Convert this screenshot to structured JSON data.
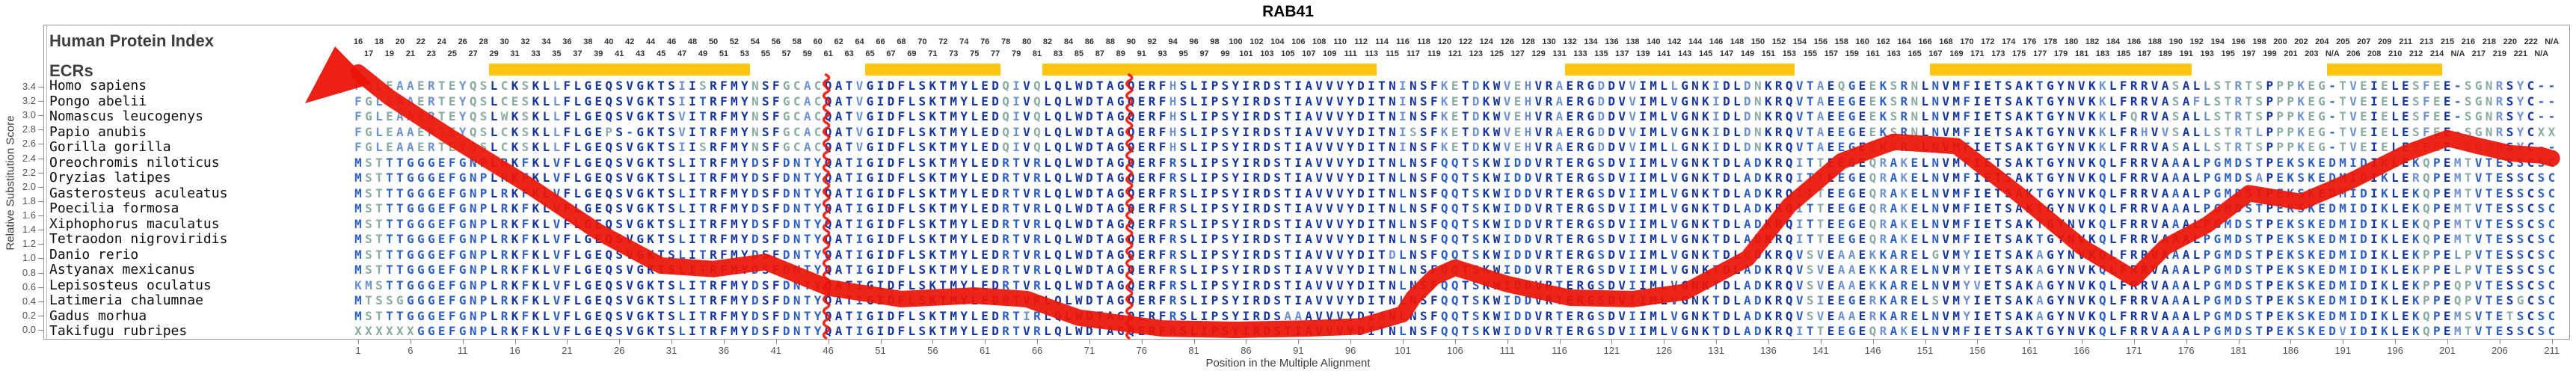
{
  "title": "RAB41",
  "left_panel": {
    "header_label": "Human Protein Index",
    "ecrs_label": "ECRs"
  },
  "y_axis": {
    "label": "Relative Substitution Score",
    "ticks": [
      "0.0",
      "0.2",
      "0.4",
      "0.6",
      "0.8",
      "1.0",
      "1.2",
      "1.4",
      "1.6",
      "1.8",
      "2.0",
      "2.2",
      "2.4",
      "2.6",
      "2.8",
      "3.0",
      "3.2",
      "3.4"
    ]
  },
  "x_axis": {
    "label": "Position in the Multiple Alignment",
    "ticks": [
      1,
      6,
      11,
      16,
      21,
      26,
      31,
      36,
      41,
      46,
      51,
      56,
      61,
      66,
      71,
      76,
      81,
      86,
      91,
      96,
      101,
      106,
      111,
      116,
      121,
      126,
      131,
      136,
      141,
      146,
      151,
      156,
      161,
      166,
      171,
      176,
      181,
      186,
      191,
      196,
      201,
      206,
      211
    ]
  },
  "colors": {
    "curve_red": "#EC1408",
    "ecr_gold": "#FFC40C",
    "letter_navy": "#15369E",
    "letter_blue": "#2D5FC3",
    "letter_steel": "#6E92D0",
    "letter_sage": "#8AAB9F",
    "axis_gray": "#9A9A9A"
  },
  "chart_data": {
    "type": "line",
    "title": "RAB41",
    "xlabel": "Position in the Multiple Alignment",
    "ylabel": "Relative Substitution Score",
    "xlim": [
      1,
      211
    ],
    "ylim": [
      0.0,
      3.4
    ],
    "grid": false,
    "curve": {
      "name": "relative-substitution-score",
      "color": "#EC1408",
      "starts_with_arrowhead": true,
      "points": [
        [
          1,
          3.6
        ],
        [
          4,
          3.25
        ],
        [
          10,
          2.68
        ],
        [
          17,
          2.05
        ],
        [
          24,
          1.37
        ],
        [
          30,
          0.9
        ],
        [
          35,
          0.85
        ],
        [
          40,
          0.95
        ],
        [
          46,
          0.59
        ],
        [
          53,
          0.43
        ],
        [
          60,
          0.48
        ],
        [
          65,
          0.43
        ],
        [
          70,
          0.17
        ],
        [
          78,
          0.02
        ],
        [
          85,
          0.0
        ],
        [
          92,
          0.02
        ],
        [
          97,
          0.05
        ],
        [
          101,
          0.22
        ],
        [
          102,
          0.45
        ],
        [
          104,
          0.74
        ],
        [
          106,
          0.87
        ],
        [
          111,
          0.64
        ],
        [
          117,
          0.45
        ],
        [
          123,
          0.43
        ],
        [
          128,
          0.53
        ],
        [
          134,
          1.0
        ],
        [
          138,
          1.74
        ],
        [
          143,
          2.36
        ],
        [
          148,
          2.63
        ],
        [
          154,
          2.57
        ],
        [
          160,
          1.89
        ],
        [
          166,
          1.16
        ],
        [
          171,
          0.72
        ],
        [
          174,
          1.16
        ],
        [
          178,
          1.47
        ],
        [
          182,
          1.91
        ],
        [
          187,
          1.79
        ],
        [
          192,
          2.1
        ],
        [
          197,
          2.47
        ],
        [
          201,
          2.68
        ],
        [
          204,
          2.57
        ],
        [
          207,
          2.47
        ],
        [
          210,
          2.44
        ],
        [
          211,
          2.4
        ]
      ]
    },
    "red_column_markers": [
      46,
      75
    ],
    "ecr_bars_columns": [
      [
        14,
        38
      ],
      [
        50,
        62
      ],
      [
        67,
        98
      ],
      [
        117,
        138
      ],
      [
        152,
        176
      ],
      [
        190,
        200
      ]
    ],
    "human_protein_index": [
      16,
      17,
      18,
      19,
      20,
      21,
      22,
      23,
      24,
      25,
      26,
      27,
      28,
      29,
      30,
      31,
      32,
      33,
      34,
      35,
      36,
      37,
      38,
      39,
      40,
      41,
      42,
      43,
      44,
      45,
      46,
      47,
      48,
      49,
      50,
      51,
      52,
      53,
      54,
      55,
      56,
      57,
      58,
      59,
      60,
      61,
      62,
      63,
      64,
      65,
      66,
      67,
      68,
      69,
      70,
      71,
      72,
      73,
      74,
      75,
      76,
      77,
      78,
      79,
      80,
      81,
      82,
      83,
      84,
      85,
      86,
      87,
      88,
      89,
      90,
      91,
      92,
      93,
      94,
      95,
      96,
      97,
      98,
      99,
      100,
      101,
      102,
      103,
      104,
      105,
      106,
      107,
      108,
      109,
      110,
      111,
      112,
      113,
      114,
      115,
      116,
      117,
      118,
      119,
      120,
      121,
      122,
      123,
      124,
      125,
      126,
      127,
      128,
      129,
      130,
      131,
      132,
      133,
      134,
      135,
      136,
      137,
      138,
      139,
      140,
      141,
      142,
      143,
      144,
      145,
      146,
      147,
      148,
      149,
      150,
      151,
      152,
      153,
      154,
      155,
      156,
      157,
      158,
      159,
      160,
      161,
      162,
      163,
      164,
      165,
      166,
      167,
      168,
      169,
      170,
      171,
      172,
      173,
      174,
      175,
      176,
      177,
      178,
      179,
      180,
      181,
      182,
      183,
      184,
      185,
      186,
      187,
      188,
      189,
      190,
      191,
      192,
      193,
      194,
      195,
      196,
      197,
      198,
      199,
      200,
      201,
      202,
      203,
      204,
      "N/A",
      205,
      206,
      207,
      208,
      209,
      210,
      211,
      212,
      213,
      214,
      215,
      "N/A",
      216,
      217,
      218,
      219,
      220,
      221,
      222,
      "N/A",
      "N/A"
    ],
    "alignment": {
      "columns": 211,
      "species": [
        {
          "name": "Homo sapiens",
          "sequence": "FGLEAAERTEYQSLCKSKLLFLGEQSVGKTSIISRFMYNSFGCACQATVGIDFLSKTMYLEDQIVQLQLWDTAGQERFHSLIPSYIRDSTIAVVVYDITNINSFKETDKWVEHVRAERGDDVVIMLLGNKIDLDNKRQVTAEQGEEKSRNLNVMFIETSAKTGYNVKKLFRRVASALLSTRTSPPPKEG-TVEIELESFEE-SGNRSYC--"
        },
        {
          "name": "Pongo abelii",
          "sequence": "FGLEAAERTEYQSLCESKLLFLGEQSVGKTSIITRFMYNSFGCACQATVGIDFLSKTMYLEDQIVQLQLWDTAGQERFHSLIPSYIRDSTIAVVVYDITNINSFKETDKWVEHVRAERGDDVVIMLVGNKIDLDNKRQVTAEEGEEKSRNLNVMFIETSAKTGYNVKKLFRRVASAFLSTRTSPPPKEG-TVEIELESFEE-SGNRSYC--"
        },
        {
          "name": "Nomascus leucogenys",
          "sequence": "FGLEAAERTEYQSLWKSKLLFLGEQSVGKTSVITRFMYNSFGCACQATVGIDFLSKTMYLEDQIVQLQLWDTAGQERFHSLIPSYIRDSTIAVVVYDITNINSFKETDKWVEHVRAERGDDVVIMLVGNKIDLDNKRQVTAEEGEEKSRNLNVMFIETSAKTGYNVKKLFQRVASALLSTRTSPPPKEG-TVEIELESFEE-SGNRSYC--"
        },
        {
          "name": "Papio anubis",
          "sequence": "FGLEAAERTEYQSLCKSKLLFLGEPS-GKTSVITRFMYNSFGCACQATVGIDFLSKTMYLEDQIVQLQLWDTAGQERFHSLIPSYIRDSTIAVVVYDITNISSFKETDKWVEHVRAERGDDVVIMLVGNKIDLDNKRQVTAEEGEEKSRNLNVMFIETSAKTGYNVKKLFRHVVSALLSTRTLPPPKEG-TVEIELESFEE-SGNRSYCXX"
        },
        {
          "name": "Gorilla gorilla",
          "sequence": "FGLEAAERTEYQSLCKSKLLFLGEQSVGKTSIISRFMYNSFGCACQATVGIDFLSKTMYLEDQIVQLQLWDTAGQERFHSLIPSYIRDSTIAVVVYDITNINSFKETDKWVEHVRAERGDDVVIMLLGNKIDLDNKRQVTAEEGEEKSRNLNVMFIETSAKTGYNVKKLFRRVASALLSTRTSPPPKEG-TVEIELESFEE-SGNRSYC--"
        },
        {
          "name": "Oreochromis niloticus",
          "sequence": "MSTTTGGGEFGNPLRKFKLVFLGEQSVGKTSLITRFMYDSFDNTYQATIGIDFLSKTMYLEDRTVRLQLWDTAGQERFRSLIPSYIRDSTIAVVVYDITNLNSFQQTSKWIDDVRTERGSDVIIMLVGNKTDLADKRQITTEEGEQRAKELNVMFIETSAKTGYNVKQLFRRVAAALPGMDSTPEKSKEDMIDIKLEKQPEMTVTESSCSC"
        },
        {
          "name": "Oryzias latipes",
          "sequence": "MSTTTGGGEFGNPLRKFKLVFLGEQSVGKTSLITRFMYDSFDNTYQATIGIDFLSKTMYLEDRTVRLQLWDTAGQERFRSLIPSYIRDSTIAVVVYDITNLNSFQQTSKWIDDVRTERGSDVIIMLVGNKTDLADKRQITTEEGEQRAKELNVMFIETSAKTGYNVKQLFRRVAAALPGMDSAPEKSKEDMIDIKLERQPEMTVTESSCSC"
        },
        {
          "name": "Gasterosteus aculeatus",
          "sequence": "MSTTTGGGEFGNPLRKFKLVFLGEQSVGKTSLITRFMYDSFDNTYQATIGIDFLSKTMYLEDRTVRLQLWDTAGQERFRSLIPSYIRDSTIAVVVYDITNLNSFQQTSKWIDDVRTERGSDVIIMLVGNKTDLADKRQITTEEGEQRAKELNVMFIETSAKTGYNVKQLFRRVAAALPGMDSTPEKSKEDMIDIKLEKQPEMTVTESSCSC"
        },
        {
          "name": "Poecilia formosa",
          "sequence": "MSTTTGGGEFGNPLRKFKLVFLGEQSVGKTSLITRFMYDSFDNTYQATIGIDFLSKTMYLEDRTVRLQLWDTAGQERFRSLIPSYIRDSTIAVVVYDITNLNSFQQTSKWIDDVRTERGSDVIIMLVGNKTDLADKRQITTEEGEQRAKELNVMFIETSAKTGYNVKQLFRRVAAALPGMDSTPEKSKEDMIDIKLEKQPEMTVTESSCSC"
        },
        {
          "name": "Xiphophorus maculatus",
          "sequence": "MSTTTGGGEFGNPLRKFKLVFLGEQSVGKTSLITRFMYDSFDNTYQATIGIDFLSKTMYLEDRTVRLQLWDTAGQERFRSLIPSYIRDSTIAVVVYDITNLNSFQQTSKWIDDVRTERGSDVIIMLVGNKTDLADKRQITTEEGEQRAKELNVMFIETSAKTGYNVKQLFRRVAAALPGMDSTPEKSKEDMIDIKLEKQPEMTVTESSCSC"
        },
        {
          "name": "Tetraodon nigroviridis",
          "sequence": "MSTTTGGGEFGNPLRKFKLVFLGEQSVGKTSLITRFMYDSFDNTYQATIGIDFLSKTMYLEDRTVRLQLWDTAGQERFRSLIPSYIRDSTIAVVVYDITNLNSFQQTSKWIDDVRTERGSDVIIMLVGNKTDLADKRQITTEEGEQRAKELNVMFIETSAKTGYNVKQLFRRVAAALPGMDSTPEKSKEDMIDIKLEKQPEMTVTESSCSC"
        },
        {
          "name": "Danio rerio",
          "sequence": "MSTTTGGGEFGNPLRKFKLVFLGEQSVGKTSLITRFMYDSFDNTYQATIGIDFLSKTMYLEDRTVRLQLWDTAGQERFRSLIPSYIRDSTIAVVVYDITDLNSFQQTSKWIDDVRTERGSDVIIMLVGNKTDLGDKRQVSVEAAEKKARELGVMYIETSAKAGYNVKQLFRRVAAALPGMDSTPEKSKEDMIDIKLEKPPELPVTESSCSC"
        },
        {
          "name": "Astyanax mexicanus",
          "sequence": "MSTTTGGGEFGNPLRKFKLVFLGEQSVGKTSLITRFMYDSFDNTYQATIGIDFLSKTMYLEDRTVRLQLWDTAGQERFRSLIPSYIRDSTIAVVVYDITNLNSFQQTSKWIDDVRTERGSDVIIMLVGNKTDLADKRQVSVEAAEKKARELNVMYIETSAKAGYNVKQLFRRVAAALPGMDSTPEKSKEDMIDIKLEKPPELPVTESSCSC"
        },
        {
          "name": "Lepisosteus oculatus",
          "sequence": "KMSTTGGGEFGNPLRKFKLVFLGEQSVGKTSLITRFMYDSFDNTYQATIGIDFLSKTMYLEDRTVRLQLWDTAGQERFRSLIPSYIRDSTIAVVVYDITNLNSFQQTSKWIDDVRTERGSDVIIMLVGNKTDLADKRQVSVEAAEKKARELNVMYVETSAKAGYNVKQLFRRVAAALPGMDSTPEKSKEDMIDIKLEKPPEQPVTESSCSC"
        },
        {
          "name": "Latimeria chalumnae",
          "sequence": "MTSSGGGGEFGNPLRKFKLVFLGEQSVGKTSLITRFMYDSFDNTYQATIGIDFLSKTMYLEDRTVRLQLWDTAGQERFRSLIPSYIRDSTIAVVVYDITNLNSFQQTSKWIDDVRTERGSDVIIMLVGNKTDLADKRQVSIEEGERKARELSVMYIETSAKAGYNVKQLFRRVAAALPGMDSTPEKSKEDMIDIKLEKPPEQPVTESGCSC"
        },
        {
          "name": "Gadus morhua",
          "sequence": "MSTTTGGGEFGNPLRKFKLVFLGEQSVGKTSLITRFMYDSFDNTYQATIGIDFLSKTMYLEDRTIRLQLWDTAGQERFRSLIPSYIRDSAAAVVVYDIANLNSFQQTSKWIDDVRTERGSDVIIMLVGNKTDLADKRQVSVEAAERKARELNVMYIETSAKAGYNVKQLFRRVAAALPGMDSTPEKSKEDMIDIKLEKQPEMSVTETSCSC"
        },
        {
          "name": "Takifugu rubripes",
          "sequence": "XXXXXXGGEFGNPLRKFKLVFLGEQSVGKTSLITRFMYDSFDNTYQATIGIDFLSKTMYLEDRTVRLQLWDTAGQERFRSLIPSYIRDSTIAVVVYDITNLNSFQQTSKWIDDVRTERGSDVIIMLVGNKTDLADKRQITTEEGEQRAKELNVMFIETSAKTGYNVKQLFRRVAAALPGMDSTPEKSKEDVIDIKLEKQPEMTVTESSCSC"
        }
      ]
    }
  }
}
